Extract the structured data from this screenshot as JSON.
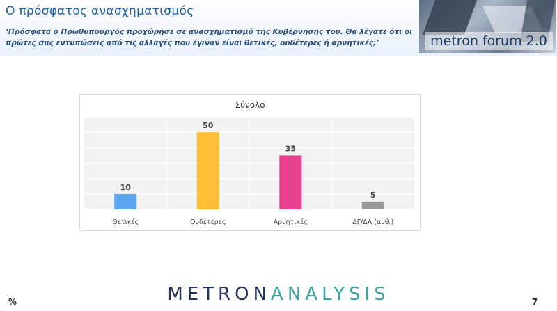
{
  "header": {
    "title": "Ο πρόσφατος ανασχηματισμός",
    "question": "‘Πρόσφατα ο Πρωθυπουργός προχώρησε σε ανασχηματισμό της Κυβέρνησης του. Θα λέγατε ότι οι πρώτες σας εντυπώσεις από τις αλλαγές που έγιναν είναι θετικές, ουδέτερες ή αρνητικές;’",
    "brand": "metron forum 2.0"
  },
  "chart_data": {
    "type": "bar",
    "title": "Σύνολο",
    "categories": [
      "Θετικές",
      "Ουδέτερες",
      "Αρνητικές",
      "ΔΓ/ΔΑ (αυθ.)"
    ],
    "values": [
      10,
      50,
      35,
      5
    ],
    "colors": [
      "#5aa6ef",
      "#fbbe36",
      "#e8428f",
      "#9a9a9a"
    ],
    "ylim": [
      0,
      60
    ],
    "grid": true
  },
  "footer": {
    "logo_part1": "METRON",
    "logo_part2": "ANALYSIS",
    "unit": "%",
    "page": "7"
  }
}
